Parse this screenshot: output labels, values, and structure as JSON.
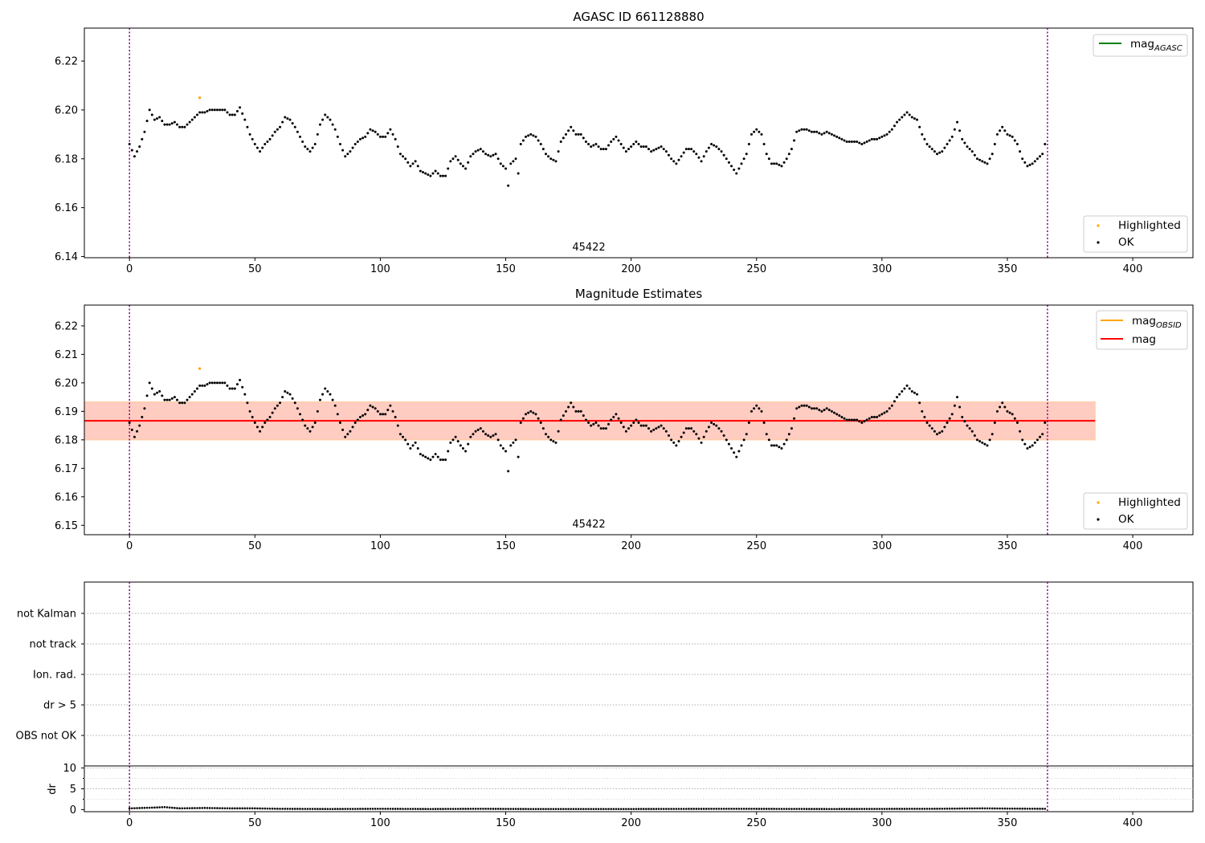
{
  "chart_data": [
    {
      "type": "scatter",
      "title": "AGASC ID 661128880",
      "annotation": "45422",
      "xticks": [
        "0",
        "50",
        "100",
        "150",
        "200",
        "250",
        "300",
        "350",
        "400"
      ],
      "yticks": [
        "6.14",
        "6.16",
        "6.18",
        "6.20",
        "6.22"
      ],
      "xlim": [
        -18,
        424
      ],
      "ylim": [
        6.1395,
        6.2335
      ],
      "legend_lines": [
        {
          "label": "mag",
          "sub": "AGASC",
          "color": "#008000"
        }
      ],
      "legend_points": [
        {
          "label": "Highlighted",
          "color": "#ffa500"
        },
        {
          "label": "OK",
          "color": "#000000"
        }
      ],
      "vlines": [
        0,
        366
      ],
      "highlighted": {
        "x": 28,
        "y": 6.205
      }
    },
    {
      "type": "scatter",
      "title": "Magnitude Estimates",
      "annotation": "45422",
      "xticks": [
        "0",
        "50",
        "100",
        "150",
        "200",
        "250",
        "300",
        "350",
        "400"
      ],
      "yticks": [
        "6.15",
        "6.16",
        "6.17",
        "6.18",
        "6.19",
        "6.20",
        "6.21",
        "6.22"
      ],
      "xlim": [
        -18,
        424
      ],
      "ylim": [
        6.1467,
        6.2273
      ],
      "legend_lines": [
        {
          "label": "mag",
          "sub": "OBSID",
          "color": "#ffa500"
        },
        {
          "label": "mag",
          "sub": "",
          "color": "#ff0000"
        }
      ],
      "legend_points": [
        {
          "label": "Highlighted",
          "color": "#ffa500"
        },
        {
          "label": "OK",
          "color": "#000000"
        }
      ],
      "vlines": [
        0,
        366
      ],
      "mean_mag": 6.1867,
      "band_outer": [
        6.1798,
        6.1935
      ],
      "band_inner": [
        6.18,
        6.1933
      ],
      "band_xrange": [
        -18,
        385
      ],
      "highlighted": {
        "x": 28,
        "y": 6.205
      }
    },
    {
      "type": "table",
      "flag_labels": [
        "not Kalman",
        "not track",
        "Ion. rad.",
        "dr > 5",
        "OBS not OK"
      ],
      "vlines": [
        0,
        366
      ]
    },
    {
      "type": "scatter",
      "ylabel": "dr",
      "xticks": [
        "0",
        "50",
        "100",
        "150",
        "200",
        "250",
        "300",
        "350",
        "400"
      ],
      "yticks": [
        "0",
        "5",
        "10"
      ],
      "ylim": [
        -0.5,
        10.5
      ],
      "vlines": [
        0,
        366
      ]
    }
  ],
  "series": {
    "count": 366,
    "ok_color": "#000000",
    "mag_anchors": [
      [
        0,
        6.186
      ],
      [
        2,
        6.181
      ],
      [
        4,
        6.185
      ],
      [
        6,
        6.191
      ],
      [
        8,
        6.2
      ],
      [
        10,
        6.196
      ],
      [
        12,
        6.197
      ],
      [
        14,
        6.194
      ],
      [
        16,
        6.194
      ],
      [
        18,
        6.195
      ],
      [
        20,
        6.193
      ],
      [
        22,
        6.193
      ],
      [
        24,
        6.195
      ],
      [
        26,
        6.197
      ],
      [
        28,
        6.199
      ],
      [
        30,
        6.199
      ],
      [
        32,
        6.2
      ],
      [
        35,
        6.2
      ],
      [
        38,
        6.2
      ],
      [
        40,
        6.198
      ],
      [
        42,
        6.198
      ],
      [
        44,
        6.201
      ],
      [
        46,
        6.196
      ],
      [
        48,
        6.19
      ],
      [
        50,
        6.186
      ],
      [
        52,
        6.183
      ],
      [
        54,
        6.186
      ],
      [
        56,
        6.188
      ],
      [
        58,
        6.191
      ],
      [
        60,
        6.193
      ],
      [
        62,
        6.197
      ],
      [
        64,
        6.196
      ],
      [
        66,
        6.193
      ],
      [
        68,
        6.189
      ],
      [
        70,
        6.185
      ],
      [
        72,
        6.183
      ],
      [
        74,
        6.186
      ],
      [
        76,
        6.194
      ],
      [
        78,
        6.198
      ],
      [
        80,
        6.196
      ],
      [
        82,
        6.192
      ],
      [
        84,
        6.186
      ],
      [
        86,
        6.181
      ],
      [
        88,
        6.183
      ],
      [
        90,
        6.186
      ],
      [
        92,
        6.188
      ],
      [
        94,
        6.189
      ],
      [
        96,
        6.192
      ],
      [
        98,
        6.191
      ],
      [
        100,
        6.189
      ],
      [
        102,
        6.189
      ],
      [
        104,
        6.192
      ],
      [
        106,
        6.188
      ],
      [
        108,
        6.182
      ],
      [
        110,
        6.18
      ],
      [
        112,
        6.177
      ],
      [
        114,
        6.179
      ],
      [
        116,
        6.175
      ],
      [
        118,
        6.174
      ],
      [
        120,
        6.173
      ],
      [
        122,
        6.175
      ],
      [
        124,
        6.173
      ],
      [
        126,
        6.173
      ],
      [
        128,
        6.179
      ],
      [
        130,
        6.181
      ],
      [
        132,
        6.178
      ],
      [
        134,
        6.176
      ],
      [
        136,
        6.181
      ],
      [
        138,
        6.183
      ],
      [
        140,
        6.184
      ],
      [
        142,
        6.182
      ],
      [
        144,
        6.181
      ],
      [
        146,
        6.182
      ],
      [
        148,
        6.178
      ],
      [
        150,
        6.176
      ],
      [
        151,
        6.169
      ],
      [
        152,
        6.178
      ],
      [
        154,
        6.18
      ],
      [
        155,
        6.174
      ],
      [
        156,
        6.186
      ],
      [
        158,
        6.189
      ],
      [
        160,
        6.19
      ],
      [
        162,
        6.189
      ],
      [
        164,
        6.186
      ],
      [
        166,
        6.182
      ],
      [
        168,
        6.18
      ],
      [
        170,
        6.179
      ],
      [
        172,
        6.187
      ],
      [
        174,
        6.19
      ],
      [
        176,
        6.193
      ],
      [
        178,
        6.19
      ],
      [
        180,
        6.19
      ],
      [
        182,
        6.187
      ],
      [
        184,
        6.185
      ],
      [
        186,
        6.186
      ],
      [
        188,
        6.184
      ],
      [
        190,
        6.184
      ],
      [
        192,
        6.187
      ],
      [
        194,
        6.189
      ],
      [
        196,
        6.186
      ],
      [
        198,
        6.183
      ],
      [
        200,
        6.185
      ],
      [
        202,
        6.187
      ],
      [
        204,
        6.185
      ],
      [
        206,
        6.185
      ],
      [
        208,
        6.183
      ],
      [
        210,
        6.184
      ],
      [
        212,
        6.185
      ],
      [
        214,
        6.183
      ],
      [
        216,
        6.18
      ],
      [
        218,
        6.178
      ],
      [
        220,
        6.181
      ],
      [
        222,
        6.184
      ],
      [
        224,
        6.184
      ],
      [
        226,
        6.182
      ],
      [
        228,
        6.179
      ],
      [
        230,
        6.183
      ],
      [
        232,
        6.186
      ],
      [
        234,
        6.185
      ],
      [
        236,
        6.183
      ],
      [
        238,
        6.18
      ],
      [
        240,
        6.177
      ],
      [
        242,
        6.174
      ],
      [
        244,
        6.178
      ],
      [
        246,
        6.182
      ],
      [
        248,
        6.19
      ],
      [
        250,
        6.192
      ],
      [
        252,
        6.19
      ],
      [
        254,
        6.182
      ],
      [
        256,
        6.178
      ],
      [
        258,
        6.178
      ],
      [
        260,
        6.177
      ],
      [
        262,
        6.18
      ],
      [
        264,
        6.184
      ],
      [
        266,
        6.191
      ],
      [
        268,
        6.192
      ],
      [
        270,
        6.192
      ],
      [
        272,
        6.191
      ],
      [
        274,
        6.191
      ],
      [
        276,
        6.19
      ],
      [
        278,
        6.191
      ],
      [
        280,
        6.19
      ],
      [
        282,
        6.189
      ],
      [
        284,
        6.188
      ],
      [
        286,
        6.187
      ],
      [
        288,
        6.187
      ],
      [
        290,
        6.187
      ],
      [
        292,
        6.186
      ],
      [
        294,
        6.187
      ],
      [
        296,
        6.188
      ],
      [
        298,
        6.188
      ],
      [
        300,
        6.189
      ],
      [
        302,
        6.19
      ],
      [
        304,
        6.192
      ],
      [
        306,
        6.195
      ],
      [
        308,
        6.197
      ],
      [
        310,
        6.199
      ],
      [
        312,
        6.197
      ],
      [
        314,
        6.196
      ],
      [
        316,
        6.19
      ],
      [
        318,
        6.186
      ],
      [
        320,
        6.184
      ],
      [
        322,
        6.182
      ],
      [
        324,
        6.183
      ],
      [
        326,
        6.186
      ],
      [
        328,
        6.189
      ],
      [
        330,
        6.195
      ],
      [
        332,
        6.188
      ],
      [
        334,
        6.185
      ],
      [
        336,
        6.183
      ],
      [
        338,
        6.18
      ],
      [
        340,
        6.179
      ],
      [
        342,
        6.178
      ],
      [
        344,
        6.182
      ],
      [
        346,
        6.19
      ],
      [
        348,
        6.193
      ],
      [
        350,
        6.19
      ],
      [
        352,
        6.189
      ],
      [
        354,
        6.186
      ],
      [
        356,
        6.18
      ],
      [
        358,
        6.177
      ],
      [
        360,
        6.178
      ],
      [
        362,
        6.18
      ],
      [
        364,
        6.182
      ],
      [
        365,
        6.186
      ]
    ],
    "dr_anchors": [
      [
        0,
        0.3
      ],
      [
        5,
        0.4
      ],
      [
        10,
        0.5
      ],
      [
        14,
        0.6
      ],
      [
        20,
        0.3
      ],
      [
        30,
        0.4
      ],
      [
        40,
        0.3
      ],
      [
        50,
        0.3
      ],
      [
        60,
        0.2
      ],
      [
        80,
        0.15
      ],
      [
        100,
        0.2
      ],
      [
        120,
        0.15
      ],
      [
        140,
        0.2
      ],
      [
        160,
        0.15
      ],
      [
        200,
        0.15
      ],
      [
        240,
        0.2
      ],
      [
        280,
        0.15
      ],
      [
        320,
        0.2
      ],
      [
        340,
        0.3
      ],
      [
        350,
        0.25
      ],
      [
        365,
        0.2
      ]
    ]
  }
}
